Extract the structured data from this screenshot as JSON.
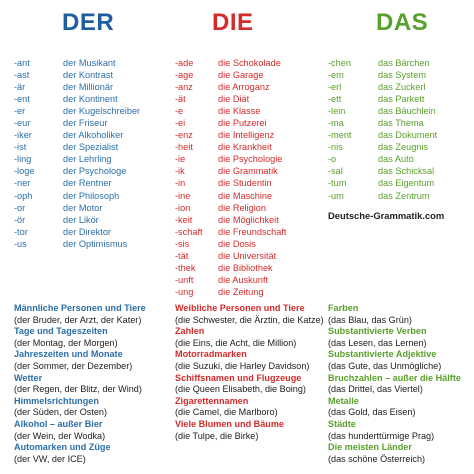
{
  "columns": {
    "der": {
      "article": "DER",
      "rows": [
        {
          "suffix": "-ant",
          "example": "der Musikant"
        },
        {
          "suffix": "-ast",
          "example": "der Kontrast"
        },
        {
          "suffix": "-är",
          "example": "der Millionär"
        },
        {
          "suffix": "-ent",
          "example": "der Kontinent"
        },
        {
          "suffix": "-er",
          "example": "der Kugelschreiber"
        },
        {
          "suffix": "-eur",
          "example": "der Friseur"
        },
        {
          "suffix": "-iker",
          "example": "der Alkoholiker"
        },
        {
          "suffix": "-ist",
          "example": "der Spezialist"
        },
        {
          "suffix": "-ling",
          "example": "der Lehrling"
        },
        {
          "suffix": "-loge",
          "example": "der Psychologe"
        },
        {
          "suffix": "-ner",
          "example": "der Rentner"
        },
        {
          "suffix": "-oph",
          "example": "der Philosoph"
        },
        {
          "suffix": "-or",
          "example": "der Motor"
        },
        {
          "suffix": "-ör",
          "example": "der Likör"
        },
        {
          "suffix": "-tor",
          "example": "der Direktor"
        },
        {
          "suffix": "-us",
          "example": "der Optimismus"
        }
      ],
      "categories": [
        {
          "title": "Männliche Personen und Tiere",
          "examples": "(der Bruder, der Arzt, der Kater)"
        },
        {
          "title": "Tage und Tageszeiten",
          "examples": "(der Montag, der Morgen)"
        },
        {
          "title": "Jahreszeiten und Monate",
          "examples": "(der Sommer, der Dezember)"
        },
        {
          "title": "Wetter",
          "examples": "(der Regen, der Blitz, der Wind)"
        },
        {
          "title": "Himmelsrichtungen",
          "examples": "(der Süden, der Osten)"
        },
        {
          "title": "Alkohol – außer Bier",
          "examples": "(der Wein, der Wodka)"
        },
        {
          "title": "Automarken und Züge",
          "examples": "(der VW, der ICE)"
        }
      ]
    },
    "die": {
      "article": "DIE",
      "rows": [
        {
          "suffix": "-ade",
          "example": "die Schokolade"
        },
        {
          "suffix": "-age",
          "example": "die Garage"
        },
        {
          "suffix": "-anz",
          "example": "die Arroganz"
        },
        {
          "suffix": "-ät",
          "example": "die Diät"
        },
        {
          "suffix": "-e",
          "example": "die Klasse"
        },
        {
          "suffix": "-ei",
          "example": "die Putzerei"
        },
        {
          "suffix": "-enz",
          "example": "die Intelligenz"
        },
        {
          "suffix": "-heit",
          "example": "die Krankheit"
        },
        {
          "suffix": "-ie",
          "example": "die Psychologie"
        },
        {
          "suffix": "-ik",
          "example": "die Grammatik"
        },
        {
          "suffix": "-in",
          "example": "die Studentin"
        },
        {
          "suffix": "-ine",
          "example": "die Maschine"
        },
        {
          "suffix": "-ion",
          "example": "die Religion"
        },
        {
          "suffix": "-keit",
          "example": "die Möglichkeit"
        },
        {
          "suffix": "-schaft",
          "example": "die Freundschaft"
        },
        {
          "suffix": "-sis",
          "example": "die Dosis"
        },
        {
          "suffix": "-tät",
          "example": "die Universität"
        },
        {
          "suffix": "-thek",
          "example": "die Bibliothek"
        },
        {
          "suffix": "-unft",
          "example": "die Auskunft"
        },
        {
          "suffix": "-ung",
          "example": "die Zeitung"
        }
      ],
      "categories": [
        {
          "title": "Weibliche Personen und Tiere",
          "examples": "(die Schwester, die Ärztin, die Katze)"
        },
        {
          "title": "Zahlen",
          "examples": "(die Eins, die Acht, die Million)"
        },
        {
          "title": "Motorradmarken",
          "examples": "(die Suzuki, die Harley Davidson)"
        },
        {
          "title": "Schiffsnamen und Flugzeuge",
          "examples": "(die Queen Elisabeth, die Boing)"
        },
        {
          "title": "Zigarettennamen",
          "examples": "(die Camel, die Marlboro)"
        },
        {
          "title": "Viele Blumen und Bäume",
          "examples": "(die Tulpe, die Birke)"
        }
      ]
    },
    "das": {
      "article": "DAS",
      "rows": [
        {
          "suffix": "-chen",
          "example": "das Bärchen"
        },
        {
          "suffix": "-em",
          "example": "das System"
        },
        {
          "suffix": "-erl",
          "example": "das Zuckerl"
        },
        {
          "suffix": "-ett",
          "example": "das Parkett"
        },
        {
          "suffix": "-lein",
          "example": "das Bäuchlein"
        },
        {
          "suffix": "-ma",
          "example": "das Thema"
        },
        {
          "suffix": "-ment",
          "example": "das Dokument"
        },
        {
          "suffix": "-nis",
          "example": "das Zeugnis"
        },
        {
          "suffix": "-o",
          "example": "das Auto"
        },
        {
          "suffix": "-sal",
          "example": "das Schicksal"
        },
        {
          "suffix": "-tum",
          "example": "das Eigentum"
        },
        {
          "suffix": "-um",
          "example": "das Zentrum"
        }
      ],
      "source_link": "Deutsche-Grammatik.com",
      "categories": [
        {
          "title": "Farben",
          "examples": "(das Blau, das Grün)"
        },
        {
          "title": "Substantivierte Verben",
          "examples": "(das Lesen, das Lernen)"
        },
        {
          "title": "Substantivierte Adjektive",
          "examples": "(das Gute, das Unmögliche)"
        },
        {
          "title": "Bruchzahlen – außer die Hälfte",
          "examples": "(das Drittel, das Viertel)"
        },
        {
          "title": "Metalle",
          "examples": "(das Gold, das Eisen)"
        },
        {
          "title": "Städte",
          "examples": "(das hunderttürmige Prag)"
        },
        {
          "title": "Die meisten Länder",
          "examples": "(das schöne Österreich)"
        }
      ]
    }
  },
  "colors": {
    "der": "#1e5ea0",
    "die": "#d42b2b",
    "das": "#5aa02c"
  }
}
